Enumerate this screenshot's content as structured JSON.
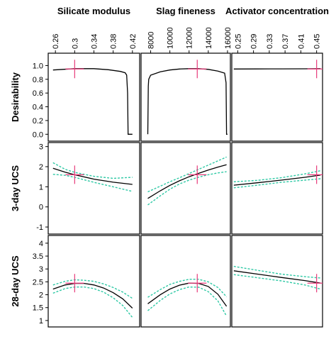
{
  "chart_data": {
    "type": "line",
    "colors": {
      "prediction": "#000000",
      "ci": "#2fc9a5",
      "marker": "#e83a7a"
    },
    "columns": [
      {
        "title": "Silicate modulus",
        "min": 0.245,
        "max": 0.435,
        "ticks": [
          "0.26",
          "0.3",
          "0.34",
          "0.38",
          "0.42"
        ],
        "tick_values": [
          0.26,
          0.3,
          0.34,
          0.38,
          0.42
        ],
        "marker": 0.3
      },
      {
        "title": "Slag fineness",
        "min": 7000,
        "max": 16300,
        "ticks": [
          "8000",
          "10000",
          "12000",
          "14000",
          "16000"
        ],
        "tick_values": [
          8000,
          10000,
          12000,
          14000,
          16000
        ],
        "marker": 12850
      },
      {
        "title": "Activator concentration",
        "min": 0.235,
        "max": 0.465,
        "ticks": [
          "0.25",
          "0.29",
          "0.33",
          "0.37",
          "0.41",
          "0.45"
        ],
        "tick_values": [
          0.25,
          0.29,
          0.33,
          0.37,
          0.41,
          0.45
        ],
        "marker": 0.45
      }
    ],
    "rows": [
      {
        "label": "Desirability",
        "min": -0.1,
        "max": 1.18,
        "ticks": [
          "0.0",
          "0.2",
          "0.4",
          "0.6",
          "0.8",
          "1.0"
        ],
        "tick_values": [
          0,
          0.2,
          0.4,
          0.6,
          0.8,
          1.0
        ]
      },
      {
        "label": "3-day UCS",
        "min": -1.35,
        "max": 3.2,
        "ticks": [
          "-1",
          "0",
          "1",
          "2",
          "3"
        ],
        "tick_values": [
          -1,
          0,
          1,
          2,
          3
        ]
      },
      {
        "label": "28-day UCS",
        "min": 0.75,
        "max": 4.3,
        "ticks": [
          "1",
          "1.5",
          "2",
          "2.5",
          "3",
          "3.5",
          "4"
        ],
        "tick_values": [
          1,
          1.5,
          2,
          2.5,
          3,
          3.5,
          4
        ]
      }
    ],
    "panels": [
      {
        "row": 0,
        "col": 0,
        "marker_y": 0.95,
        "mid": [
          [
            0.255,
            0.935
          ],
          [
            0.3,
            0.955
          ],
          [
            0.34,
            0.955
          ],
          [
            0.37,
            0.94
          ],
          [
            0.395,
            0.915
          ],
          [
            0.405,
            0.895
          ],
          [
            0.408,
            0.86
          ],
          [
            0.41,
            0.6
          ],
          [
            0.411,
            0.0
          ],
          [
            0.42,
            0.0
          ]
        ]
      },
      {
        "row": 0,
        "col": 1,
        "marker_y": 0.95,
        "mid": [
          [
            7700,
            0.0
          ],
          [
            7750,
            0.7
          ],
          [
            7800,
            0.8
          ],
          [
            8000,
            0.86
          ],
          [
            9000,
            0.91
          ],
          [
            10000,
            0.935
          ],
          [
            11000,
            0.95
          ],
          [
            12000,
            0.955
          ],
          [
            13000,
            0.955
          ],
          [
            14000,
            0.945
          ],
          [
            15000,
            0.92
          ],
          [
            15700,
            0.89
          ],
          [
            15850,
            0.75
          ],
          [
            15900,
            0.0
          ],
          [
            16000,
            0.0
          ]
        ]
      },
      {
        "row": 0,
        "col": 2,
        "marker_y": 0.95,
        "mid": [
          [
            0.24,
            0.95
          ],
          [
            0.3,
            0.951
          ],
          [
            0.36,
            0.952
          ],
          [
            0.42,
            0.953
          ],
          [
            0.46,
            0.955
          ]
        ]
      },
      {
        "row": 1,
        "col": 0,
        "marker_y": 1.6,
        "mid": [
          [
            0.255,
            1.92
          ],
          [
            0.28,
            1.73
          ],
          [
            0.3,
            1.6
          ],
          [
            0.34,
            1.38
          ],
          [
            0.38,
            1.23
          ],
          [
            0.42,
            1.12
          ]
        ],
        "upper": [
          [
            0.255,
            2.2
          ],
          [
            0.28,
            1.87
          ],
          [
            0.3,
            1.72
          ],
          [
            0.34,
            1.52
          ],
          [
            0.38,
            1.42
          ],
          [
            0.42,
            1.47
          ]
        ],
        "lower": [
          [
            0.255,
            1.62
          ],
          [
            0.28,
            1.57
          ],
          [
            0.3,
            1.47
          ],
          [
            0.34,
            1.22
          ],
          [
            0.38,
            1.0
          ],
          [
            0.42,
            0.77
          ]
        ]
      },
      {
        "row": 1,
        "col": 1,
        "marker_y": 1.6,
        "mid": [
          [
            7700,
            0.42
          ],
          [
            9000,
            0.8
          ],
          [
            10000,
            1.07
          ],
          [
            11000,
            1.3
          ],
          [
            12000,
            1.5
          ],
          [
            13000,
            1.67
          ],
          [
            14000,
            1.83
          ],
          [
            15000,
            1.98
          ],
          [
            15900,
            2.1
          ]
        ],
        "upper": [
          [
            7700,
            0.75
          ],
          [
            9000,
            1.03
          ],
          [
            10000,
            1.25
          ],
          [
            11000,
            1.45
          ],
          [
            12000,
            1.66
          ],
          [
            13000,
            1.87
          ],
          [
            14000,
            2.08
          ],
          [
            15000,
            2.29
          ],
          [
            15900,
            2.48
          ]
        ],
        "lower": [
          [
            7700,
            0.1
          ],
          [
            9000,
            0.55
          ],
          [
            10000,
            0.88
          ],
          [
            11000,
            1.14
          ],
          [
            12000,
            1.33
          ],
          [
            13000,
            1.48
          ],
          [
            14000,
            1.6
          ],
          [
            15000,
            1.69
          ],
          [
            15900,
            1.75
          ]
        ]
      },
      {
        "row": 1,
        "col": 2,
        "marker_y": 1.6,
        "mid": [
          [
            0.24,
            1.08
          ],
          [
            0.3,
            1.2
          ],
          [
            0.36,
            1.33
          ],
          [
            0.42,
            1.47
          ],
          [
            0.46,
            1.58
          ]
        ],
        "upper": [
          [
            0.24,
            1.25
          ],
          [
            0.3,
            1.32
          ],
          [
            0.36,
            1.45
          ],
          [
            0.42,
            1.64
          ],
          [
            0.46,
            1.8
          ]
        ],
        "lower": [
          [
            0.24,
            0.95
          ],
          [
            0.3,
            1.08
          ],
          [
            0.36,
            1.22
          ],
          [
            0.42,
            1.33
          ],
          [
            0.46,
            1.4
          ]
        ]
      },
      {
        "row": 2,
        "col": 0,
        "marker_y": 2.45,
        "mid": [
          [
            0.255,
            2.22
          ],
          [
            0.28,
            2.38
          ],
          [
            0.3,
            2.44
          ],
          [
            0.32,
            2.44
          ],
          [
            0.34,
            2.38
          ],
          [
            0.36,
            2.26
          ],
          [
            0.38,
            2.08
          ],
          [
            0.4,
            1.84
          ],
          [
            0.42,
            1.48
          ]
        ],
        "upper": [
          [
            0.255,
            2.38
          ],
          [
            0.28,
            2.52
          ],
          [
            0.3,
            2.58
          ],
          [
            0.32,
            2.56
          ],
          [
            0.34,
            2.52
          ],
          [
            0.36,
            2.42
          ],
          [
            0.38,
            2.28
          ],
          [
            0.4,
            2.1
          ],
          [
            0.42,
            1.86
          ]
        ],
        "lower": [
          [
            0.255,
            2.06
          ],
          [
            0.28,
            2.24
          ],
          [
            0.3,
            2.3
          ],
          [
            0.32,
            2.3
          ],
          [
            0.34,
            2.24
          ],
          [
            0.36,
            2.1
          ],
          [
            0.38,
            1.88
          ],
          [
            0.4,
            1.58
          ],
          [
            0.42,
            1.12
          ]
        ]
      },
      {
        "row": 2,
        "col": 1,
        "marker_y": 2.45,
        "mid": [
          [
            7700,
            1.65
          ],
          [
            9000,
            2.0
          ],
          [
            10000,
            2.22
          ],
          [
            11000,
            2.37
          ],
          [
            12000,
            2.45
          ],
          [
            13000,
            2.44
          ],
          [
            14000,
            2.32
          ],
          [
            15000,
            2.02
          ],
          [
            15900,
            1.55
          ]
        ],
        "upper": [
          [
            7700,
            1.9
          ],
          [
            9000,
            2.2
          ],
          [
            10000,
            2.4
          ],
          [
            11000,
            2.52
          ],
          [
            12000,
            2.6
          ],
          [
            13000,
            2.6
          ],
          [
            14000,
            2.5
          ],
          [
            15000,
            2.28
          ],
          [
            15900,
            1.92
          ]
        ],
        "lower": [
          [
            7700,
            1.38
          ],
          [
            9000,
            1.78
          ],
          [
            10000,
            2.03
          ],
          [
            11000,
            2.2
          ],
          [
            12000,
            2.3
          ],
          [
            13000,
            2.29
          ],
          [
            14000,
            2.12
          ],
          [
            15000,
            1.76
          ],
          [
            15900,
            1.17
          ]
        ]
      },
      {
        "row": 2,
        "col": 2,
        "marker_y": 2.45,
        "mid": [
          [
            0.24,
            2.93
          ],
          [
            0.3,
            2.8
          ],
          [
            0.36,
            2.67
          ],
          [
            0.42,
            2.55
          ],
          [
            0.46,
            2.45
          ]
        ],
        "upper": [
          [
            0.24,
            3.1
          ],
          [
            0.3,
            2.95
          ],
          [
            0.36,
            2.8
          ],
          [
            0.42,
            2.7
          ],
          [
            0.46,
            2.65
          ]
        ],
        "lower": [
          [
            0.24,
            2.78
          ],
          [
            0.3,
            2.66
          ],
          [
            0.36,
            2.54
          ],
          [
            0.42,
            2.38
          ],
          [
            0.46,
            2.22
          ]
        ]
      }
    ]
  }
}
